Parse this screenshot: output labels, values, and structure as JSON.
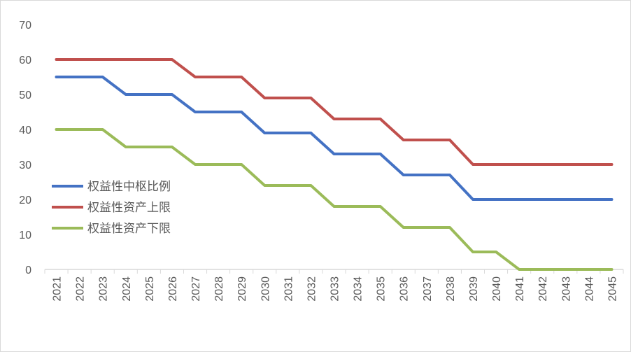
{
  "chart_data": {
    "type": "line",
    "title": "",
    "xlabel": "",
    "ylabel": "",
    "categories": [
      "2021",
      "2022",
      "2023",
      "2024",
      "2025",
      "2026",
      "2027",
      "2028",
      "2029",
      "2030",
      "2031",
      "2032",
      "2033",
      "2034",
      "2035",
      "2036",
      "2037",
      "2038",
      "2039",
      "2040",
      "2041",
      "2042",
      "2043",
      "2044",
      "2045"
    ],
    "ylim": [
      0,
      70
    ],
    "yticks": [
      0,
      10,
      20,
      30,
      40,
      50,
      60,
      70
    ],
    "grid": false,
    "legend_position": "left-middle",
    "series": [
      {
        "name": "权益性中枢比例",
        "color": "#4472c4",
        "values": [
          55,
          55,
          55,
          50,
          50,
          50,
          45,
          45,
          45,
          39,
          39,
          39,
          33,
          33,
          33,
          27,
          27,
          27,
          20,
          20,
          20,
          20,
          20,
          20,
          20
        ]
      },
      {
        "name": "权益性资产上限",
        "color": "#c0504d",
        "values": [
          60,
          60,
          60,
          60,
          60,
          60,
          55,
          55,
          55,
          49,
          49,
          49,
          43,
          43,
          43,
          37,
          37,
          37,
          30,
          30,
          30,
          30,
          30,
          30,
          30
        ]
      },
      {
        "name": "权益性资产下限",
        "color": "#9bbb59",
        "values": [
          40,
          40,
          40,
          35,
          35,
          35,
          30,
          30,
          30,
          24,
          24,
          24,
          18,
          18,
          18,
          12,
          12,
          12,
          5,
          5,
          0,
          0,
          0,
          0,
          0
        ]
      }
    ]
  }
}
